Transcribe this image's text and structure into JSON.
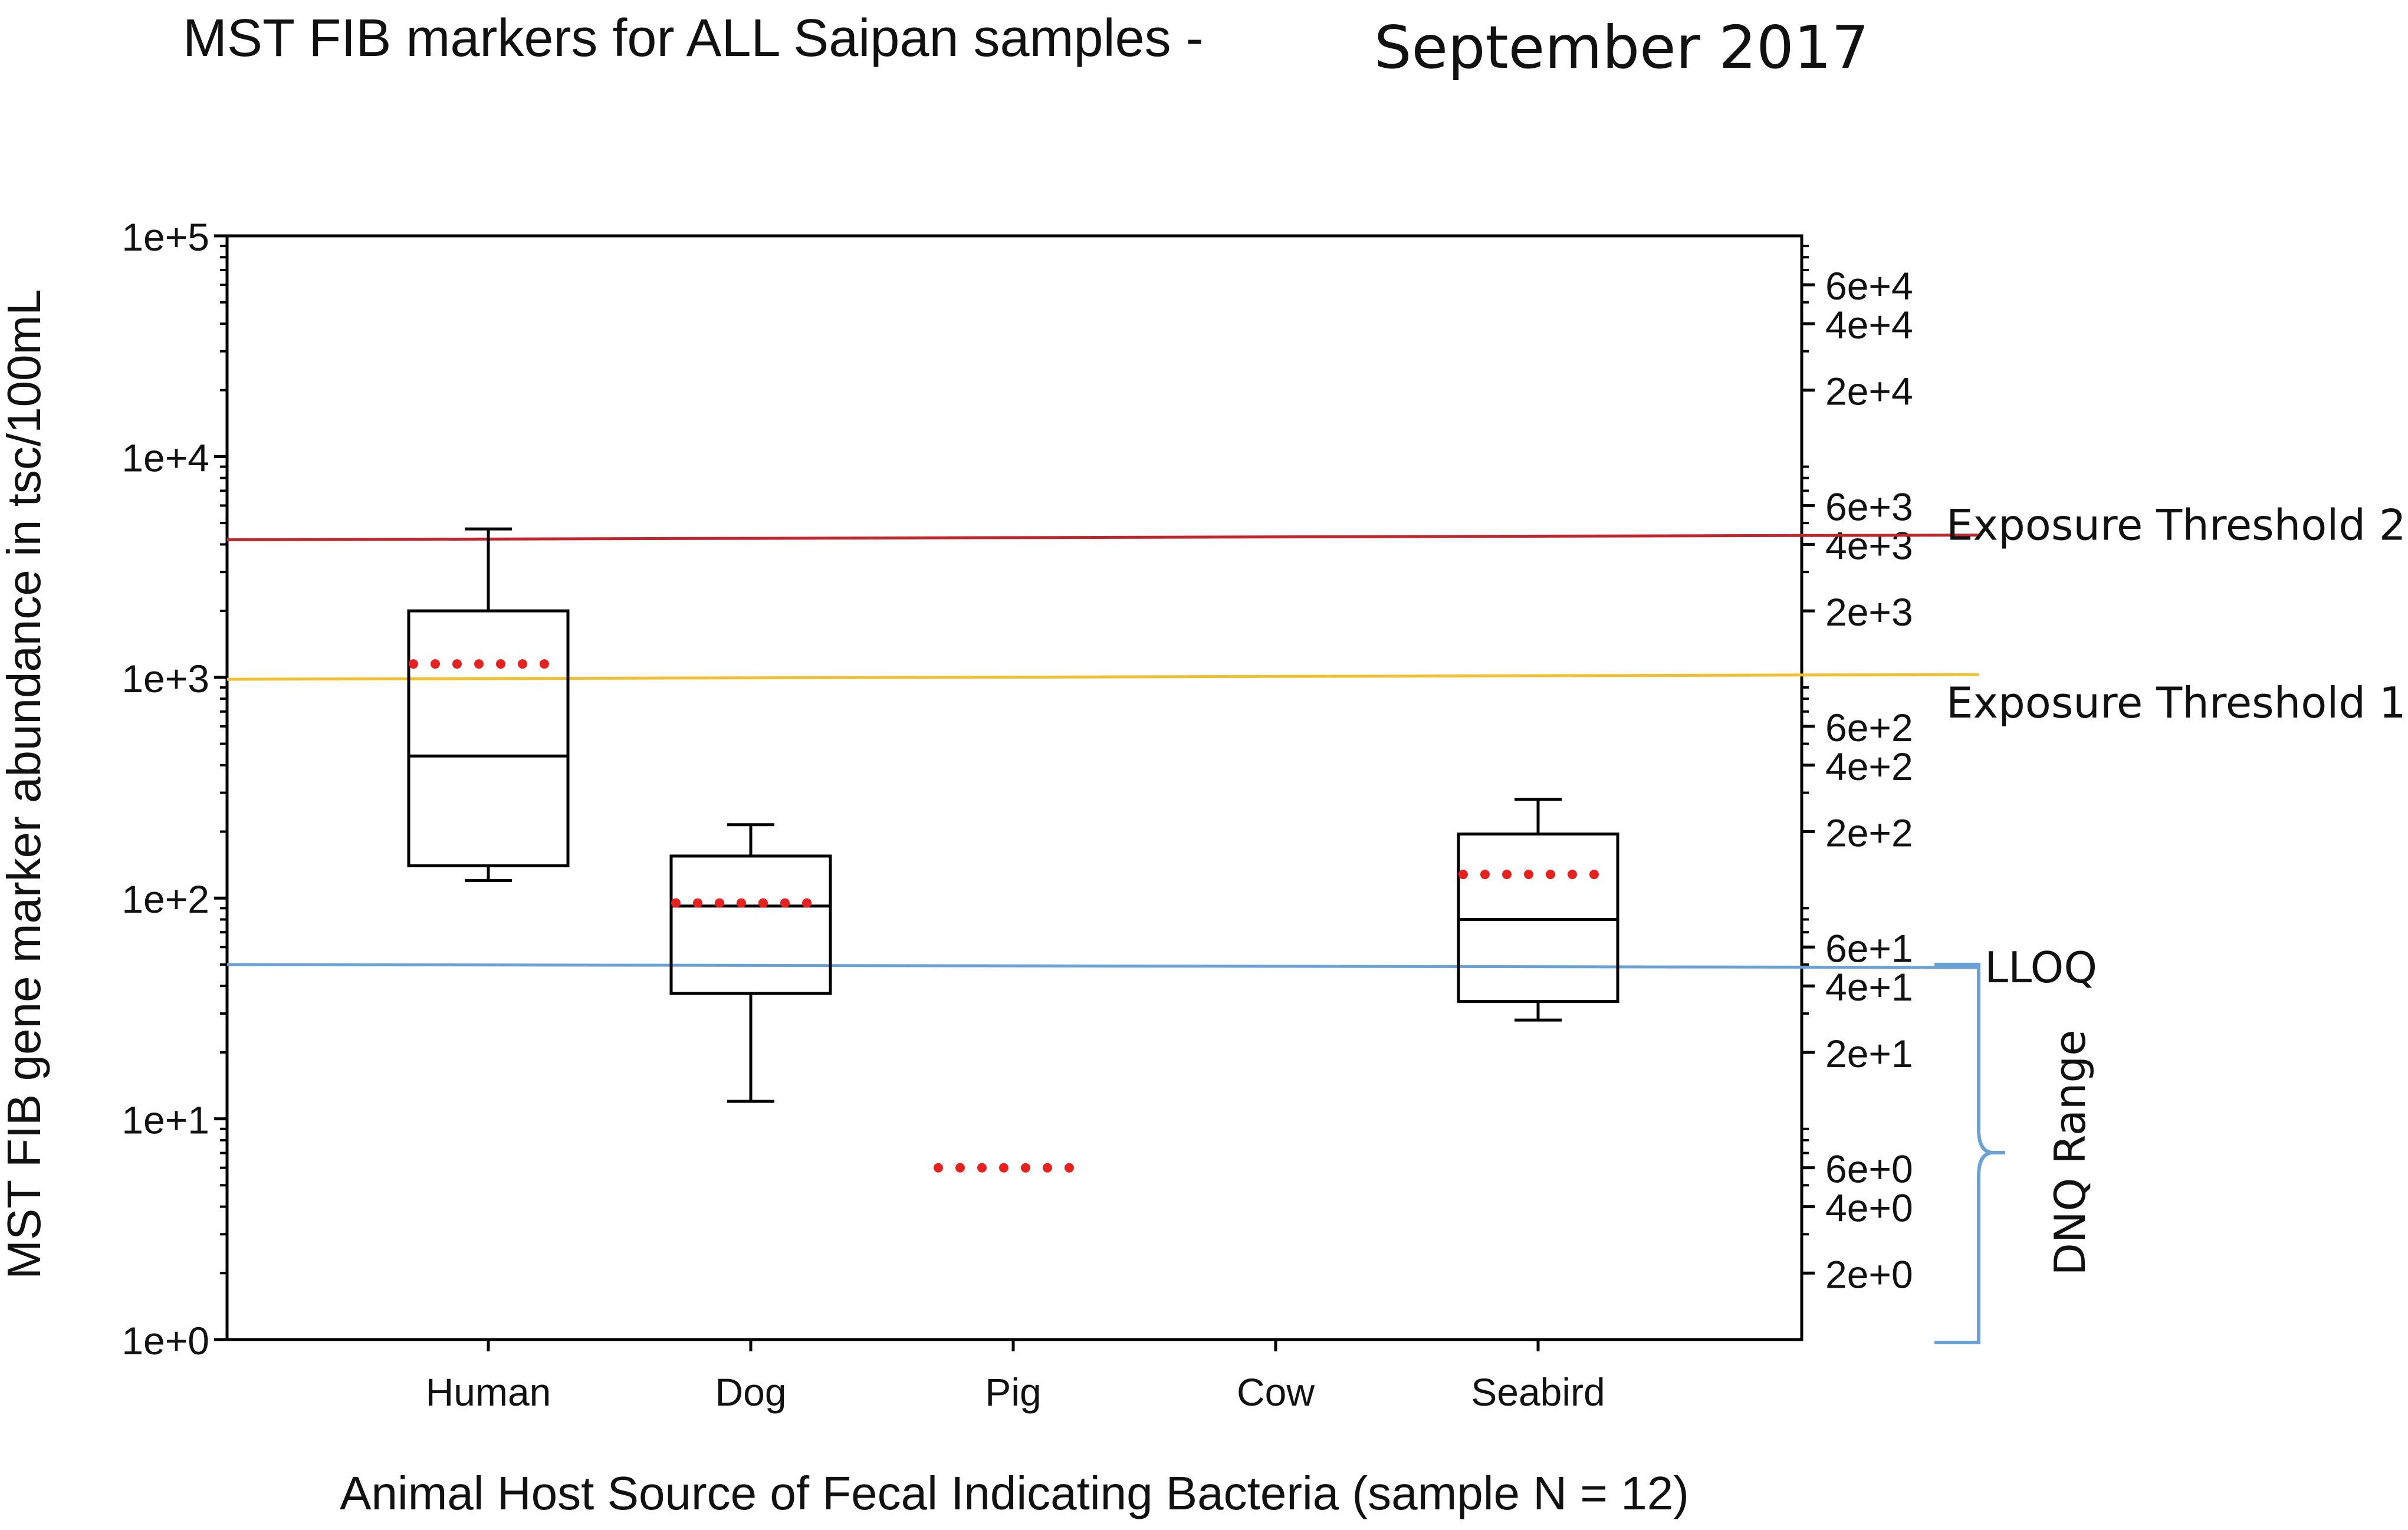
{
  "chart_data": {
    "type": "box",
    "title": "MST FIB markers for ALL Saipan samples -",
    "title_suffix": "September 2017",
    "xlabel": "Animal Host Source of Fecal Indicating Bacteria (sample N = 12)",
    "ylabel": "MST FIB gene marker abundance in tsc/100mL",
    "categories": [
      "Human",
      "Dog",
      "Pig",
      "Cow",
      "Seabird"
    ],
    "y_scale": "log",
    "ylim": [
      1,
      100000
    ],
    "left_ticks": [
      "1e+0",
      "1e+1",
      "1e+2",
      "1e+3",
      "1e+4",
      "1e+5"
    ],
    "left_tick_values": [
      1,
      10,
      100,
      1000,
      10000,
      100000
    ],
    "right_ticks": [
      "2e+0",
      "4e+0",
      "6e+0",
      "2e+1",
      "4e+1",
      "6e+1",
      "2e+2",
      "4e+2",
      "6e+2",
      "2e+3",
      "4e+3",
      "6e+3",
      "2e+4",
      "4e+4",
      "6e+4"
    ],
    "right_tick_values": [
      2,
      4,
      6,
      20,
      40,
      60,
      200,
      400,
      600,
      2000,
      4000,
      6000,
      20000,
      40000,
      60000
    ],
    "boxes": [
      {
        "category": "Human",
        "whisker_low": 120,
        "q1": 140,
        "median": 440,
        "q3": 2000,
        "whisker_high": 4700,
        "mean": 1150
      },
      {
        "category": "Dog",
        "whisker_low": 12,
        "q1": 37,
        "median": 92,
        "q3": 155,
        "whisker_high": 215,
        "mean": 95
      },
      {
        "category": "Pig",
        "mean": 6
      },
      {
        "category": "Seabird",
        "whisker_low": 28,
        "q1": 34,
        "median": 80,
        "q3": 195,
        "whisker_high": 280,
        "mean": 128
      }
    ],
    "reference_lines": [
      {
        "label": "Exposure Threshold 2",
        "value": 4200,
        "color": "#c0272d"
      },
      {
        "label": "Exposure Threshold 1",
        "value": 980,
        "color": "#f0c030"
      },
      {
        "label": "LLOQ",
        "value": 50,
        "color": "#6aa2d8"
      }
    ],
    "range_annotation": {
      "label": "DNQ Range",
      "from": 1,
      "to": 50,
      "color": "#6aa2d8"
    },
    "mean_marker_color": "#e8201e",
    "grid": false
  }
}
